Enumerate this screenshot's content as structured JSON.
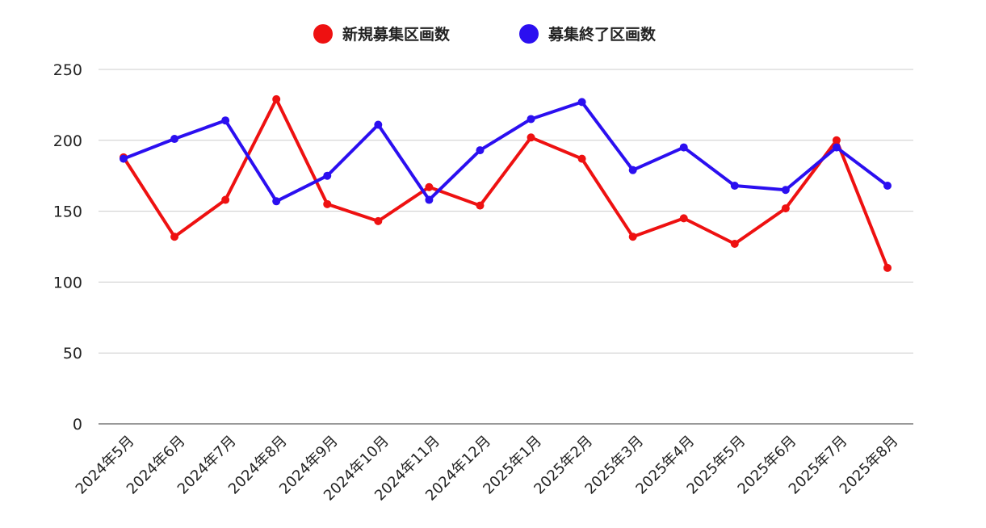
{
  "chart_data": {
    "type": "line",
    "categories": [
      "2024年5月",
      "2024年6月",
      "2024年7月",
      "2024年8月",
      "2024年9月",
      "2024年10月",
      "2024年11月",
      "2024年12月",
      "2025年1月",
      "2025年2月",
      "2025年3月",
      "2025年4月",
      "2025年5月",
      "2025年6月",
      "2025年7月",
      "2025年8月"
    ],
    "series": [
      {
        "name": "新規募集区画数",
        "color": "#ee1111",
        "values": [
          188,
          132,
          158,
          229,
          155,
          143,
          167,
          154,
          202,
          187,
          132,
          145,
          127,
          152,
          200,
          110
        ]
      },
      {
        "name": "募集終了区画数",
        "color": "#2b0ff0",
        "values": [
          187,
          201,
          214,
          157,
          175,
          211,
          158,
          193,
          215,
          227,
          179,
          195,
          168,
          165,
          195,
          168
        ]
      }
    ],
    "ylim": [
      0,
      250
    ],
    "yticks": [
      0,
      50,
      100,
      150,
      200,
      250
    ],
    "grid": true,
    "legend": "top-center",
    "title": "",
    "xlabel": "",
    "ylabel": ""
  }
}
